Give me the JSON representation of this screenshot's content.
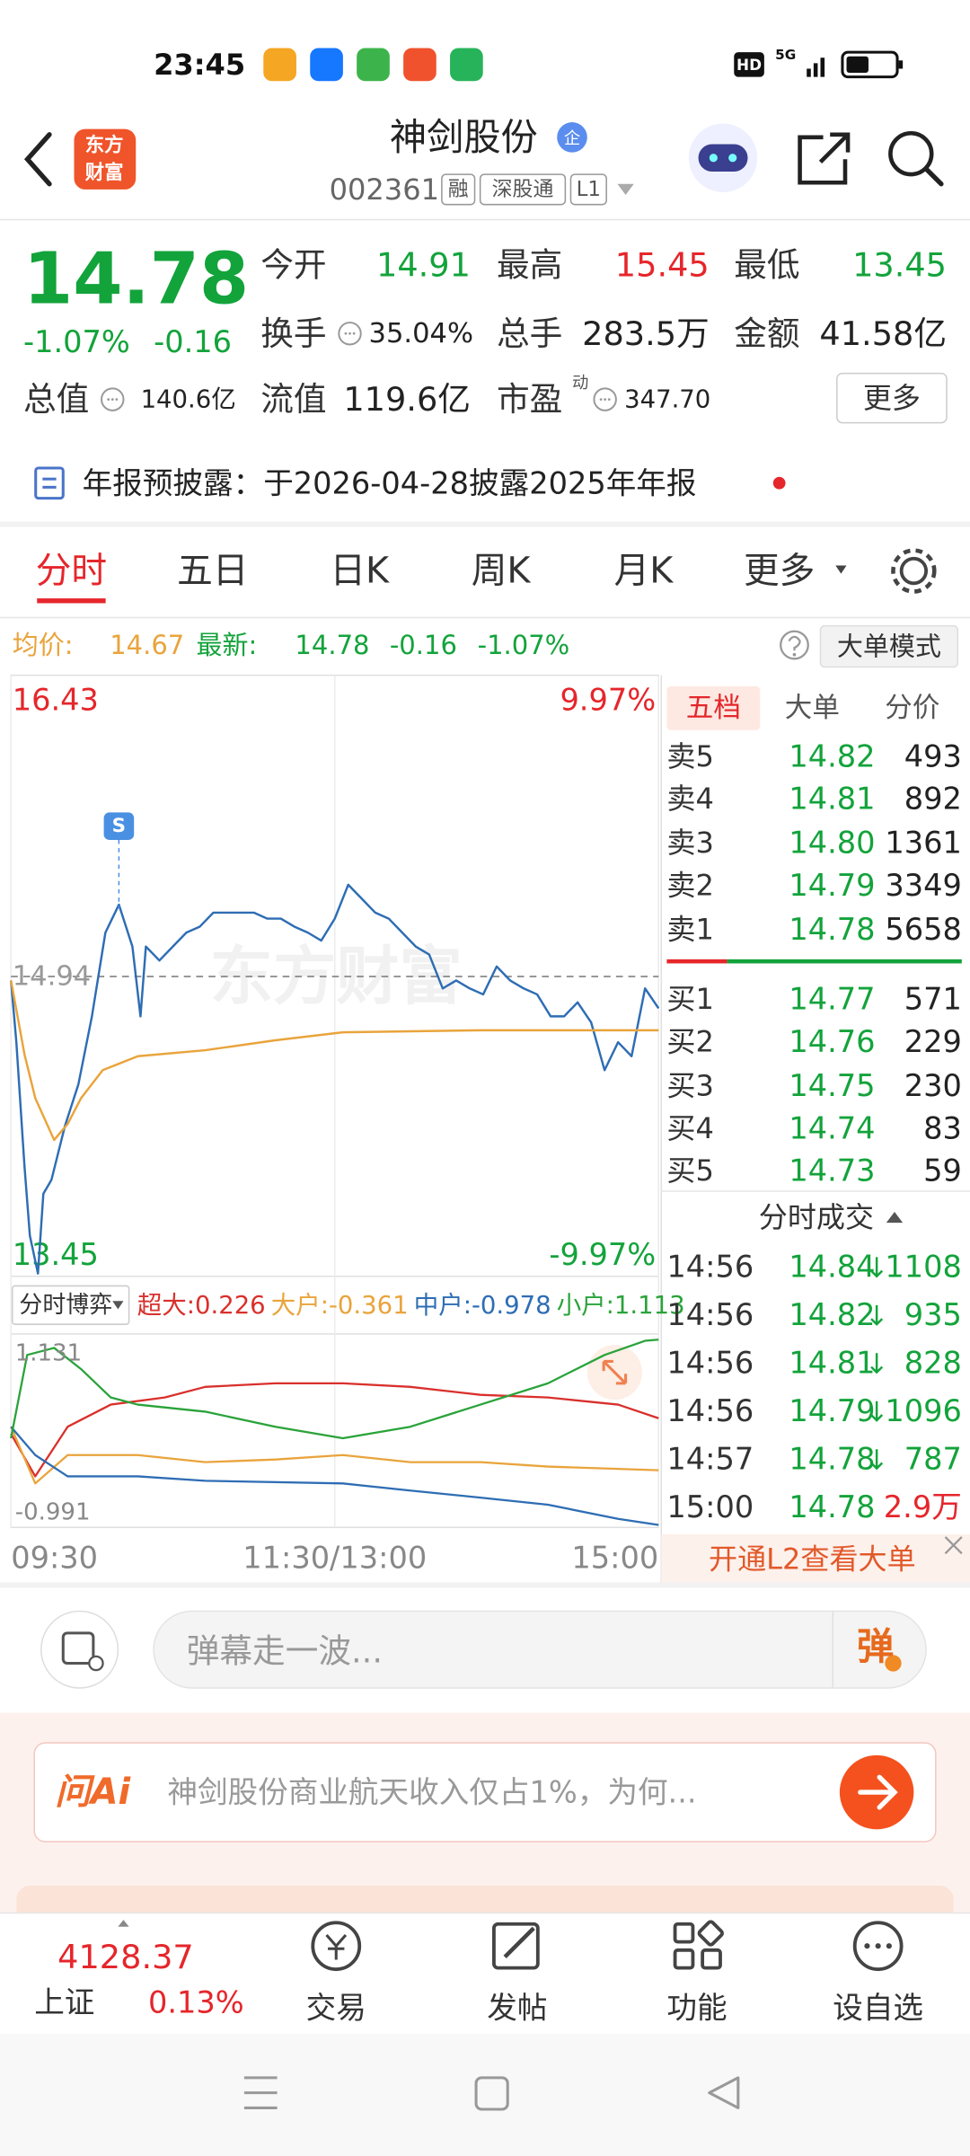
{
  "status_bar": {
    "time": "23:45",
    "hd": "HD",
    "network": "5G"
  },
  "header": {
    "logo": [
      "东方",
      "财富"
    ],
    "title": "神剑股份",
    "badge": "企",
    "code": "002361",
    "tags": [
      "融",
      "深股通",
      "L1"
    ]
  },
  "quote": {
    "price": "14.78",
    "change_pct": "-1.07%",
    "change": "-0.16",
    "fields": [
      {
        "label": "今开",
        "value": "14.91",
        "color": "#13a33b"
      },
      {
        "label": "最高",
        "value": "15.45",
        "color": "#e5262b"
      },
      {
        "label": "最低",
        "value": "13.45",
        "color": "#13a33b"
      },
      {
        "label": "换手",
        "value": "35.04%",
        "color": "#222222"
      },
      {
        "label": "总手",
        "value": "283.5万",
        "color": "#222222"
      },
      {
        "label": "金额",
        "value": "41.58亿",
        "color": "#222222"
      },
      {
        "label": "总值",
        "value": "140.6亿",
        "color": "#222222"
      },
      {
        "label": "流值",
        "value": "119.6亿",
        "color": "#222222"
      },
      {
        "label": "市盈",
        "value": "347.70",
        "color": "#222222",
        "sup": "动"
      }
    ],
    "more": "更多"
  },
  "notice": "年报预披露：于2026-04-28披露2025年年报",
  "tabs": {
    "items": [
      "分时",
      "五日",
      "日K",
      "周K",
      "月K",
      "更多"
    ],
    "active": 0
  },
  "info_bar": {
    "avg_label": "均价:",
    "avg": "14.67",
    "latest_label": "最新:",
    "latest": "14.78",
    "change": "-0.16",
    "change_pct": "-1.07%",
    "mode": "大单模式"
  },
  "order_book": {
    "tabs": [
      "五档",
      "大单",
      "分价"
    ],
    "asks": [
      {
        "label": "卖5",
        "price": "14.82",
        "volume": "493"
      },
      {
        "label": "卖4",
        "price": "14.81",
        "volume": "892"
      },
      {
        "label": "卖3",
        "price": "14.80",
        "volume": "1361"
      },
      {
        "label": "卖2",
        "price": "14.79",
        "volume": "3349"
      },
      {
        "label": "卖1",
        "price": "14.78",
        "volume": "5658"
      }
    ],
    "bids": [
      {
        "label": "买1",
        "price": "14.77",
        "volume": "571"
      },
      {
        "label": "买2",
        "price": "14.76",
        "volume": "229"
      },
      {
        "label": "买3",
        "price": "14.75",
        "volume": "230"
      },
      {
        "label": "买4",
        "price": "14.74",
        "volume": "83"
      },
      {
        "label": "买5",
        "price": "14.73",
        "volume": "59"
      }
    ]
  },
  "trades": {
    "title": "分时成交",
    "rows": [
      {
        "time": "14:56",
        "price": "14.84",
        "direction": "down",
        "volume": "1108"
      },
      {
        "time": "14:56",
        "price": "14.82",
        "direction": "down",
        "volume": "935"
      },
      {
        "time": "14:56",
        "price": "14.81",
        "direction": "down",
        "volume": "828"
      },
      {
        "time": "14:56",
        "price": "14.79",
        "direction": "down",
        "volume": "1096"
      },
      {
        "time": "14:57",
        "price": "14.78",
        "direction": "down",
        "volume": "787"
      },
      {
        "time": "15:00",
        "price": "14.78",
        "volume": "2.9万"
      }
    ]
  },
  "l2_banner": "开通L2查看大单",
  "chart_data": [
    {
      "type": "line",
      "xlim": [
        0,
        240
      ],
      "xticks": [
        {
          "value": 0,
          "label": "09:30"
        },
        {
          "value": 120,
          "label": "11:30/13:00"
        },
        {
          "value": 240,
          "label": "15:00"
        }
      ],
      "ylim": [
        13.45,
        16.43
      ],
      "ref_value": 14.94,
      "pct_labels": [
        "9.97%",
        "-9.97%"
      ],
      "watermark": "东方财富",
      "signal": {
        "label": "S",
        "x": 40
      },
      "series": [
        {
          "color": "#2e6db4",
          "x": [
            0,
            2,
            5,
            7,
            10,
            12,
            15,
            20,
            25,
            30,
            35,
            40,
            45,
            48,
            50,
            55,
            60,
            65,
            70,
            75,
            80,
            85,
            90,
            95,
            100,
            105,
            110,
            115,
            120,
            125,
            130,
            135,
            140,
            145,
            150,
            155,
            160,
            165,
            170,
            175,
            180,
            185,
            190,
            195,
            200,
            205,
            210,
            215,
            220,
            225,
            230,
            235,
            240
          ],
          "values": [
            14.92,
            14.61,
            13.99,
            13.64,
            13.45,
            13.85,
            13.92,
            14.19,
            14.4,
            14.74,
            15.16,
            15.3,
            15.09,
            14.74,
            15.09,
            15.02,
            15.09,
            15.16,
            15.19,
            15.26,
            15.26,
            15.26,
            15.26,
            15.23,
            15.23,
            15.19,
            15.16,
            15.12,
            15.23,
            15.4,
            15.33,
            15.26,
            15.23,
            15.16,
            15.09,
            15.05,
            14.88,
            14.92,
            14.88,
            14.85,
            14.99,
            14.92,
            14.88,
            14.85,
            14.74,
            14.74,
            14.81,
            14.71,
            14.47,
            14.61,
            14.54,
            14.88,
            14.78
          ]
        },
        {
          "color": "#e9a43c",
          "x": [
            0,
            5,
            9,
            16,
            21,
            26,
            34,
            47,
            72,
            98,
            123,
            174,
            240
          ],
          "values": [
            14.92,
            14.55,
            14.33,
            14.12,
            14.2,
            14.33,
            14.47,
            14.54,
            14.57,
            14.62,
            14.66,
            14.67,
            14.67
          ]
        }
      ]
    },
    {
      "type": "line",
      "title": "分时博弈",
      "xlim": [
        0,
        240
      ],
      "ylim": [
        -0.991,
        1.131
      ],
      "series": [
        {
          "name": "超大:",
          "last": 0.226,
          "color": "#d9302c",
          "x": [
            0,
            9,
            21,
            37,
            57,
            72,
            98,
            123,
            148,
            174,
            199,
            225,
            240
          ],
          "values": [
            0.05,
            -0.43,
            0.13,
            0.38,
            0.46,
            0.58,
            0.62,
            0.62,
            0.58,
            0.49,
            0.46,
            0.38,
            0.226
          ]
        },
        {
          "name": "大户:",
          "last": -0.361,
          "color": "#e9a43c",
          "x": [
            0,
            9,
            21,
            47,
            72,
            98,
            123,
            148,
            174,
            199,
            240
          ],
          "values": [
            0.13,
            -0.51,
            -0.19,
            -0.19,
            -0.27,
            -0.24,
            -0.19,
            -0.27,
            -0.27,
            -0.32,
            -0.361
          ]
        },
        {
          "name": "中户:",
          "last": -0.978,
          "color": "#2e6db4",
          "x": [
            0,
            9,
            21,
            47,
            72,
            123,
            148,
            174,
            199,
            225,
            240
          ],
          "values": [
            0.13,
            -0.19,
            -0.43,
            -0.43,
            -0.48,
            -0.51,
            -0.59,
            -0.67,
            -0.75,
            -0.91,
            -0.978
          ]
        },
        {
          "name": "小户:",
          "last": 1.113,
          "color": "#2aa33a",
          "x": [
            0,
            6,
            16,
            26,
            37,
            47,
            72,
            98,
            123,
            148,
            174,
            199,
            220,
            235,
            240
          ],
          "values": [
            0,
            0.94,
            1.02,
            0.78,
            0.46,
            0.38,
            0.3,
            0.13,
            0,
            0.13,
            0.38,
            0.62,
            0.94,
            1.1,
            1.113
          ]
        }
      ]
    }
  ],
  "danmu": {
    "placeholder": "弹幕走一波...",
    "button": "弹"
  },
  "ai": {
    "brand": "问Ai",
    "prompt": "神剑股份商业航天收入仅占1%，为何..."
  },
  "bottom_nav": {
    "index_value": "4128.37",
    "index_name": "上证",
    "index_change": "0.13%",
    "items": [
      "交易",
      "发帖",
      "功能",
      "设自选"
    ]
  }
}
